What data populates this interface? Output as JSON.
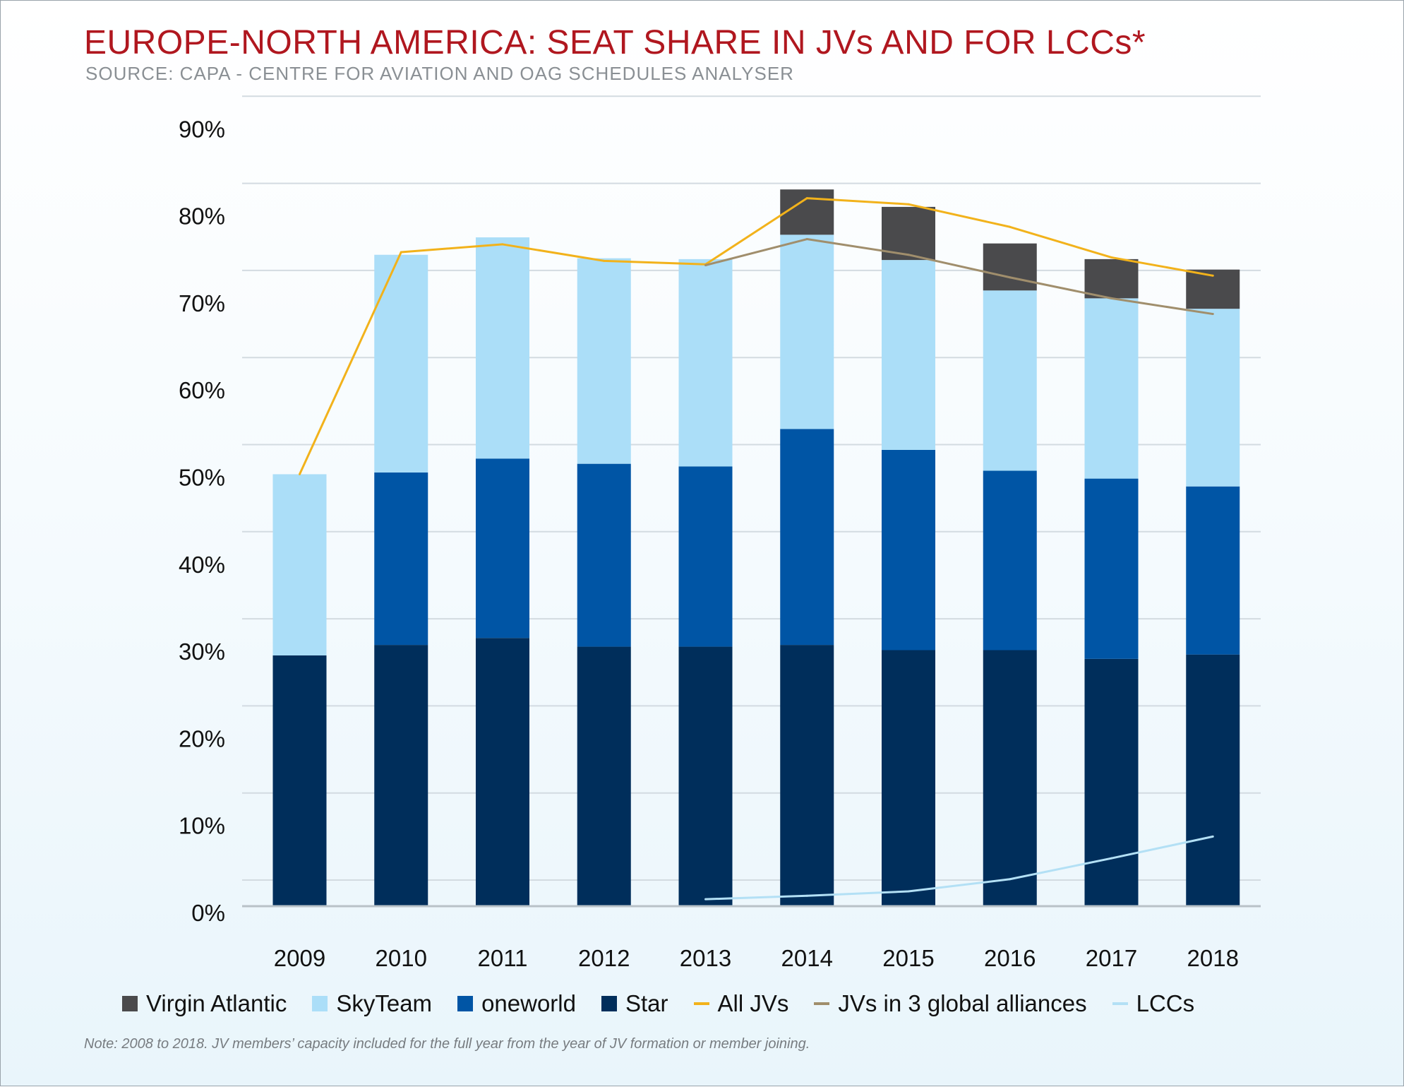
{
  "chart_data": {
    "type": "bar",
    "stacked": true,
    "title": "EUROPE-NORTH AMERICA: SEAT SHARE IN JVs AND FOR LCCs*",
    "subtitle": "SOURCE: CAPA - CENTRE FOR AVIATION AND OAG SCHEDULES ANALYSER",
    "note": "Note: 2008 to 2018. JV members’ capacity included for the full year from the year of JV formation or member joining.",
    "categories": [
      "2009",
      "2010",
      "2011",
      "2012",
      "2013",
      "2014",
      "2015",
      "2016",
      "2017",
      "2018"
    ],
    "y_ticks": [
      "0%",
      "10%",
      "20%",
      "30%",
      "40%",
      "50%",
      "60%",
      "70%",
      "80%",
      "90%"
    ],
    "ylim": [
      0,
      90
    ],
    "grid": true,
    "legend_position": "bottom",
    "series": [
      {
        "name": "Star",
        "kind": "bar",
        "color": "#002e5b",
        "values": [
          28.8,
          30,
          30.8,
          29.8,
          29.8,
          30,
          29.4,
          29.4,
          28.4,
          28.9
        ]
      },
      {
        "name": "oneworld",
        "kind": "bar",
        "color": "#0055a5",
        "values": [
          0,
          19.8,
          20.6,
          21,
          20.7,
          24.8,
          23,
          20.6,
          20.7,
          19.3
        ]
      },
      {
        "name": "SkyTeam",
        "kind": "bar",
        "color": "#abdef8",
        "values": [
          20.8,
          25,
          25.4,
          23.6,
          23.8,
          22.3,
          21.8,
          20.7,
          20.7,
          20.4
        ]
      },
      {
        "name": "Virgin Atlantic",
        "kind": "bar",
        "color": "#4a4a4c",
        "values": [
          0,
          0,
          0,
          0,
          0,
          5.2,
          6.1,
          5.4,
          4.5,
          4.5
        ]
      },
      {
        "name": "All JVs",
        "kind": "line",
        "color": "#f2b21b",
        "values": [
          49.6,
          75.1,
          76,
          74.1,
          73.7,
          81.3,
          80.6,
          78,
          74.5,
          72.4
        ]
      },
      {
        "name": "JVs in 3 global alliances",
        "kind": "line",
        "color": "#a08e6c",
        "values": [
          null,
          null,
          null,
          null,
          73.6,
          76.6,
          74.8,
          72.2,
          69.8,
          68
        ]
      },
      {
        "name": "LCCs",
        "kind": "line",
        "color": "#b3e0f5",
        "values": [
          null,
          null,
          null,
          null,
          0.8,
          1.2,
          1.7,
          3.1,
          5.5,
          8
        ]
      }
    ],
    "legend": [
      {
        "label": "Virgin Atlantic",
        "color": "#4a4a4c",
        "shape": "box"
      },
      {
        "label": "SkyTeam",
        "color": "#abdef8",
        "shape": "box"
      },
      {
        "label": "oneworld",
        "color": "#0055a5",
        "shape": "box"
      },
      {
        "label": "Star",
        "color": "#002e5b",
        "shape": "box"
      },
      {
        "label": "All JVs",
        "color": "#f2b21b",
        "shape": "line"
      },
      {
        "label": "JVs in 3 global alliances",
        "color": "#a08e6c",
        "shape": "line"
      },
      {
        "label": "LCCs",
        "color": "#b3e0f5",
        "shape": "line"
      }
    ]
  }
}
